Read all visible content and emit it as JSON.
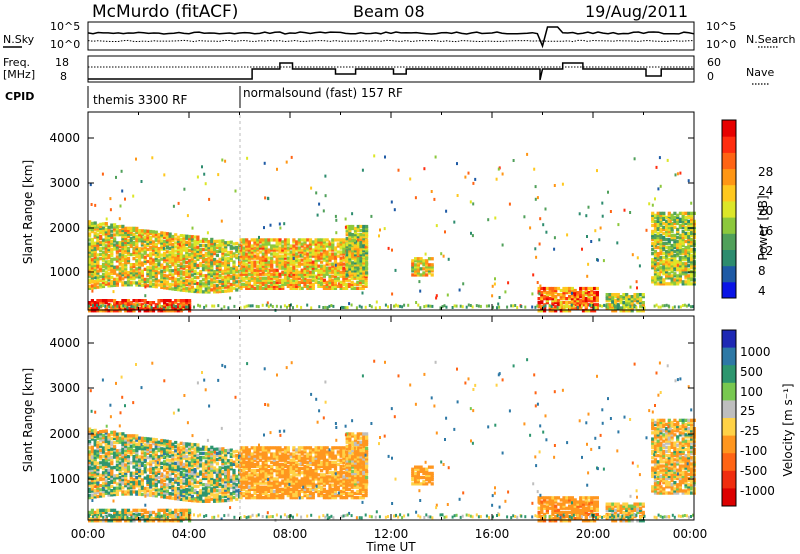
{
  "header": {
    "station": "McMurdo (fitACF)",
    "beam": "Beam 08",
    "date": "19/Aug/2011"
  },
  "noise_panel": {
    "left_label": "N.Sky",
    "right_label": "N.Search",
    "left_ticks": [
      "10^5",
      "10^0"
    ],
    "right_ticks": [
      "10^5",
      "10^0"
    ]
  },
  "freq_panel": {
    "left_label_1": "Freq.",
    "left_label_2": "[MHz]",
    "right_label": "Nave",
    "left_ticks": [
      "18",
      "8"
    ],
    "right_ticks": [
      "60",
      "0"
    ]
  },
  "cpid": {
    "label": "CPID",
    "segments": [
      {
        "name": "themis 3300 RF",
        "start_hour": 0,
        "end_hour": 6
      },
      {
        "name": "normalsound (fast) 157 RF",
        "start_hour": 6,
        "end_hour": 24
      }
    ]
  },
  "x_axis": {
    "label": "Time UT",
    "ticks": [
      "00:00",
      "04:00",
      "08:00",
      "12:00",
      "16:00",
      "20:00",
      "00:00"
    ]
  },
  "power_panel": {
    "ylabel": "Slant Range [km]",
    "yticks": [
      "1000",
      "2000",
      "3000",
      "4000"
    ],
    "cbar_label": "Power [dB]",
    "cbar_ticks": [
      "4",
      "8",
      "12",
      "16",
      "20",
      "24",
      "28"
    ],
    "cbar_colors": [
      "#0a14e6",
      "#1e5aa5",
      "#2d8c6e",
      "#50a05a",
      "#8cc83c",
      "#dce628",
      "#ffc81e",
      "#ff9614",
      "#ff6414",
      "#ff2d0f",
      "#e60000"
    ]
  },
  "velocity_panel": {
    "ylabel": "Slant Range [km]",
    "yticks": [
      "1000",
      "2000",
      "3000",
      "4000"
    ],
    "cbar_label": "Velocity [m s⁻¹]",
    "cbar_ticks": [
      "1000",
      "500",
      "100",
      "25",
      "-25",
      "-100",
      "-500",
      "-1000"
    ],
    "cbar_colors": [
      "#1e28b4",
      "#2d78a5",
      "#2d966e",
      "#78c850",
      "#bebebe",
      "#ffd246",
      "#ff961e",
      "#ff6414",
      "#f02d0f",
      "#dc0000"
    ]
  },
  "chart_data": {
    "type": "heatmap",
    "title": "McMurdo (fitACF)   Beam 08   19/Aug/2011",
    "xlabel": "Time UT",
    "ylabel": "Slant Range [km]",
    "xlim": [
      0,
      24
    ],
    "ylim": [
      180,
      4600
    ],
    "cpid_change_hour": 6,
    "power_range_db": [
      0,
      30
    ],
    "velocity_range_ms": [
      -1000,
      1000
    ],
    "echo_regions": [
      {
        "t0": 0.0,
        "t1": 6.0,
        "r0": 700,
        "r1": 2200,
        "power_db": 16,
        "velocity_ms": -20,
        "note": "broad band, decreasing range"
      },
      {
        "t0": 0.0,
        "t1": 4.0,
        "r0": 200,
        "r1": 450,
        "power_db": 26,
        "velocity_ms": -60
      },
      {
        "t0": 6.0,
        "t1": 11.0,
        "r0": 700,
        "r1": 1800,
        "power_db": 18,
        "velocity_ms": -150
      },
      {
        "t0": 10.2,
        "t1": 11.0,
        "r0": 1000,
        "r1": 2100,
        "power_db": 14,
        "velocity_ms": -120
      },
      {
        "t0": 12.8,
        "t1": 13.6,
        "r0": 1000,
        "r1": 1400,
        "power_db": 16,
        "velocity_ms": -150
      },
      {
        "t0": 17.8,
        "t1": 20.2,
        "r0": 200,
        "r1": 700,
        "power_db": 22,
        "velocity_ms": -200
      },
      {
        "t0": 20.5,
        "t1": 22.0,
        "r0": 200,
        "r1": 600,
        "power_db": 14,
        "velocity_ms": -60
      },
      {
        "t0": 22.3,
        "t1": 24.0,
        "r0": 800,
        "r1": 2400,
        "power_db": 14,
        "velocity_ms": -80
      }
    ]
  }
}
